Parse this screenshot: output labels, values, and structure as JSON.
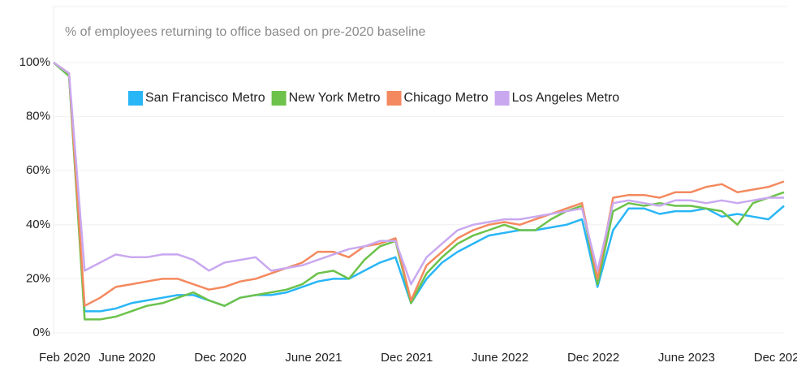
{
  "chart_data": {
    "type": "line",
    "title": "% of employees returning to office based on pre-2020 baseline",
    "categories": [
      "Feb 2020",
      null,
      null,
      null,
      "June 2020",
      null,
      null,
      null,
      null,
      null,
      "Dec 2020",
      null,
      null,
      null,
      null,
      null,
      "June 2021",
      null,
      null,
      null,
      null,
      null,
      "Dec 2021",
      null,
      null,
      null,
      null,
      null,
      "June 2022",
      null,
      null,
      null,
      null,
      null,
      "Dec 2022",
      null,
      null,
      null,
      null,
      null,
      "June 2023",
      null,
      null,
      null,
      null,
      null,
      "Dec 2023",
      null
    ],
    "series": [
      {
        "name": "San Francisco Metro",
        "color": "#29b6f6",
        "values": [
          100,
          95,
          8,
          8,
          9,
          11,
          12,
          13,
          14,
          14,
          12,
          10,
          13,
          14,
          14,
          15,
          17,
          19,
          20,
          20,
          23,
          26,
          28,
          11,
          20,
          26,
          30,
          33,
          36,
          37,
          38,
          38,
          39,
          40,
          42,
          17,
          38,
          46,
          46,
          44,
          45,
          45,
          46,
          43,
          44,
          43,
          42,
          47
        ]
      },
      {
        "name": "New York Metro",
        "color": "#6cc24a",
        "values": [
          100,
          95,
          5,
          5,
          6,
          8,
          10,
          11,
          13,
          15,
          12,
          10,
          13,
          14,
          15,
          16,
          18,
          22,
          23,
          20,
          27,
          32,
          34,
          11,
          22,
          28,
          33,
          36,
          38,
          40,
          38,
          38,
          42,
          45,
          47,
          18,
          45,
          48,
          47,
          48,
          47,
          47,
          46,
          45,
          40,
          48,
          50,
          52
        ]
      },
      {
        "name": "Chicago Metro",
        "color": "#f4895f",
        "values": [
          100,
          96,
          10,
          13,
          17,
          18,
          19,
          20,
          20,
          18,
          16,
          17,
          19,
          20,
          22,
          24,
          26,
          30,
          30,
          28,
          32,
          33,
          35,
          12,
          25,
          30,
          35,
          38,
          40,
          41,
          40,
          42,
          44,
          46,
          48,
          20,
          50,
          51,
          51,
          50,
          52,
          52,
          54,
          55,
          52,
          53,
          54,
          56
        ]
      },
      {
        "name": "Los Angeles Metro",
        "color": "#c9a8f0",
        "values": [
          100,
          96,
          23,
          26,
          29,
          28,
          28,
          29,
          29,
          27,
          23,
          26,
          27,
          28,
          23,
          24,
          25,
          27,
          29,
          31,
          32,
          34,
          34,
          18,
          28,
          33,
          38,
          40,
          41,
          42,
          42,
          43,
          44,
          45,
          46,
          23,
          48,
          49,
          48,
          47,
          49,
          49,
          48,
          49,
          48,
          49,
          50,
          50
        ]
      }
    ],
    "ylim": [
      0,
      100
    ],
    "yticks": [
      {
        "value": 0,
        "label": "0%"
      },
      {
        "value": 20,
        "label": "20%"
      },
      {
        "value": 40,
        "label": "40%"
      },
      {
        "value": 60,
        "label": "60%"
      },
      {
        "value": 80,
        "label": "80%"
      },
      {
        "value": 100,
        "label": "100%"
      }
    ],
    "grid": true,
    "legend": "top"
  }
}
